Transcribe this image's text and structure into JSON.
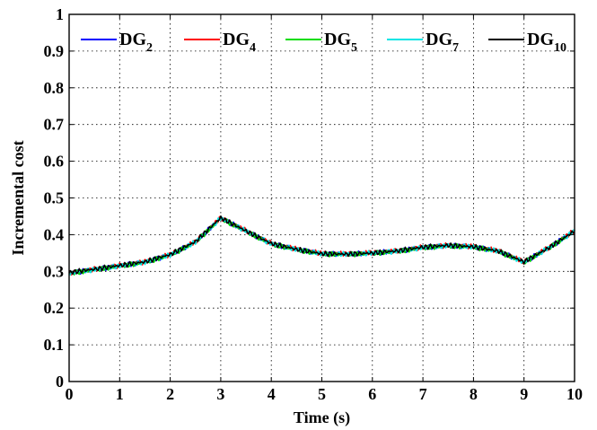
{
  "chart_data": {
    "type": "line",
    "title": "",
    "xlabel": "Time (s)",
    "ylabel": "Incremental cost",
    "xlim": [
      0,
      10
    ],
    "ylim": [
      0,
      1
    ],
    "xticks": [
      0,
      1,
      2,
      3,
      4,
      5,
      6,
      7,
      8,
      9,
      10
    ],
    "yticks": [
      0,
      0.1,
      0.2,
      0.3,
      0.4,
      0.5,
      0.6,
      0.7,
      0.8,
      0.9,
      1
    ],
    "grid": true,
    "legend_position": "top",
    "x": [
      0,
      0.5,
      1,
      1.5,
      2,
      2.5,
      3,
      3.5,
      4,
      4.5,
      5,
      5.5,
      6,
      6.5,
      7,
      7.5,
      8,
      8.5,
      9,
      9.5,
      10
    ],
    "series": [
      {
        "name": "DG",
        "subscript": "2",
        "color": "#0000ff",
        "values": [
          0.295,
          0.305,
          0.315,
          0.325,
          0.345,
          0.38,
          0.445,
          0.41,
          0.375,
          0.36,
          0.348,
          0.347,
          0.35,
          0.355,
          0.365,
          0.37,
          0.367,
          0.355,
          0.325,
          0.365,
          0.41
        ]
      },
      {
        "name": "DG",
        "subscript": "4",
        "color": "#ff0000",
        "values": [
          0.296,
          0.306,
          0.316,
          0.326,
          0.346,
          0.381,
          0.446,
          0.411,
          0.376,
          0.361,
          0.349,
          0.348,
          0.351,
          0.356,
          0.366,
          0.371,
          0.368,
          0.356,
          0.326,
          0.366,
          0.411
        ]
      },
      {
        "name": "DG",
        "subscript": "5",
        "color": "#00dd00",
        "values": [
          0.294,
          0.304,
          0.314,
          0.324,
          0.344,
          0.379,
          0.444,
          0.409,
          0.374,
          0.359,
          0.347,
          0.346,
          0.349,
          0.354,
          0.364,
          0.369,
          0.366,
          0.354,
          0.324,
          0.364,
          0.409
        ]
      },
      {
        "name": "DG",
        "subscript": "7",
        "color": "#00e5e5",
        "values": [
          0.295,
          0.305,
          0.315,
          0.325,
          0.345,
          0.38,
          0.445,
          0.41,
          0.375,
          0.36,
          0.348,
          0.347,
          0.35,
          0.355,
          0.365,
          0.37,
          0.367,
          0.355,
          0.325,
          0.365,
          0.41
        ]
      },
      {
        "name": "DG",
        "subscript": "10",
        "color": "#000000",
        "values": [
          0.297,
          0.306,
          0.316,
          0.326,
          0.346,
          0.381,
          0.446,
          0.41,
          0.376,
          0.36,
          0.348,
          0.347,
          0.35,
          0.356,
          0.366,
          0.371,
          0.367,
          0.355,
          0.326,
          0.365,
          0.41
        ]
      }
    ]
  }
}
